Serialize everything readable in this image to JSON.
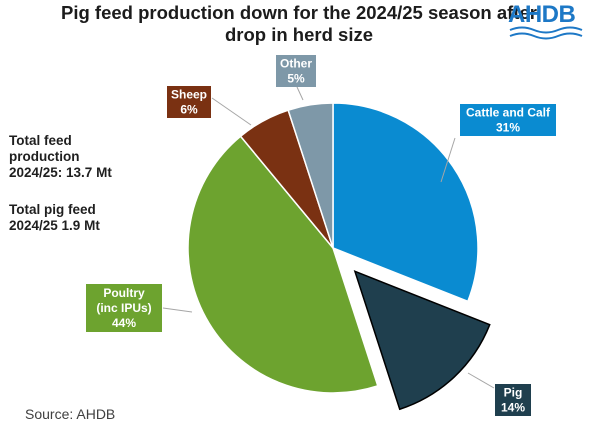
{
  "title_line1": "Pig feed production down for the 2024/25 season after",
  "title_line2": "drop in herd size",
  "logo_text": "AHDB",
  "notes": {
    "total_feed": [
      "Total feed",
      "production",
      "2024/25: 13.7 Mt"
    ],
    "total_pig_feed": [
      "Total pig feed",
      "2024/25 1.9 Mt"
    ]
  },
  "source": "Source: AHDB",
  "chart_data": {
    "type": "pie",
    "title": "Pig feed production down for the 2024/25 season after drop in herd size",
    "slices": [
      {
        "label": [
          "Cattle and Calf"
        ],
        "value": 31,
        "display": "31%",
        "color": "#0a8bd1",
        "label_fill": "#0a8bd1",
        "label_text": "#ffffff",
        "exploded": false
      },
      {
        "label": [
          "Pig"
        ],
        "value": 14,
        "display": "14%",
        "color": "#1f3f4e",
        "label_fill": "#1f3f4e",
        "label_text": "#ffffff",
        "exploded": true
      },
      {
        "label": [
          "Poultry",
          "(inc IPUs)"
        ],
        "value": 44,
        "display": "44%",
        "color": "#6da32f",
        "label_fill": "#6da32f",
        "label_text": "#ffffff",
        "exploded": false
      },
      {
        "label": [
          "Sheep"
        ],
        "value": 6,
        "display": "6%",
        "color": "#7a3112",
        "label_fill": "#7a3112",
        "label_text": "#ffffff",
        "exploded": false
      },
      {
        "label": [
          "Other"
        ],
        "value": 5,
        "display": "5%",
        "color": "#7e98a8",
        "label_fill": "#7e98a8",
        "label_text": "#ffffff",
        "exploded": false
      }
    ]
  }
}
